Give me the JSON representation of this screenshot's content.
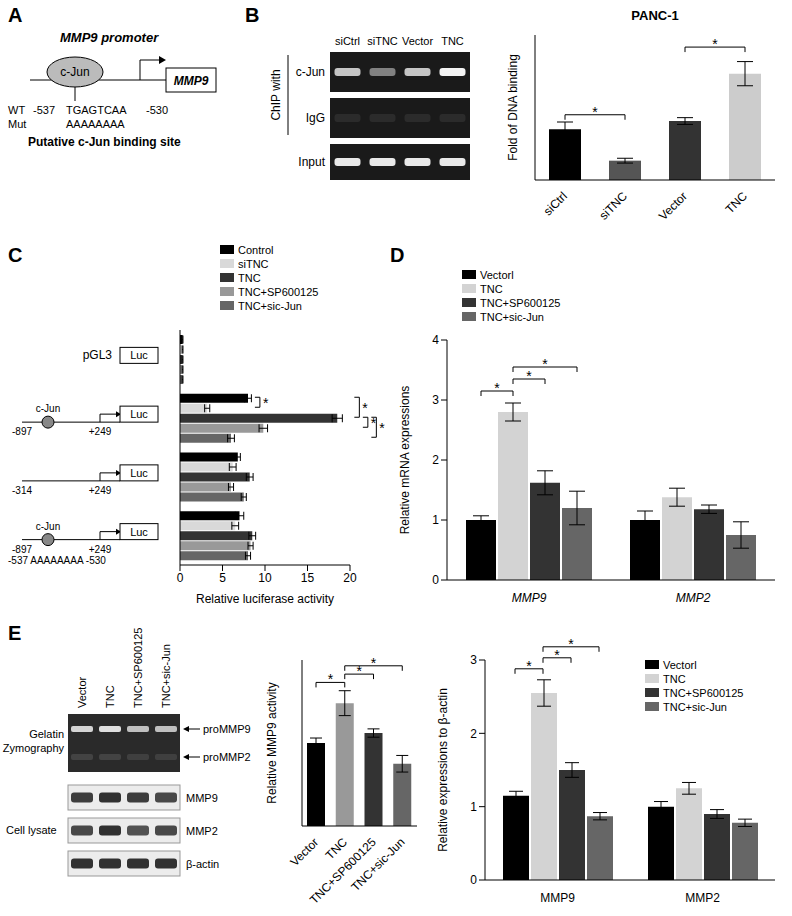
{
  "panels": {
    "letters": [
      "A",
      "B",
      "C",
      "D",
      "E"
    ],
    "A": {
      "title": "MMP9 promoter",
      "factor": "c-Jun",
      "gene": "MMP9",
      "wt_label": "WT",
      "mut_label": "Mut",
      "site_start": "-537",
      "site_end": "-530",
      "wt_sequence": "TGAGTCAA",
      "mut_sequence": "AAAAAAAA",
      "caption": "Putative c-Jun binding site"
    },
    "B_gel": {
      "group_label": "ChIP with",
      "lanes": [
        "siCtrl",
        "siTNC",
        "Vector",
        "TNC"
      ],
      "rows": [
        {
          "label": "c-Jun",
          "band_intensity": [
            0.75,
            0.45,
            0.75,
            0.95
          ]
        },
        {
          "label": "IgG",
          "band_intensity": [
            0.08,
            0.08,
            0.08,
            0.08
          ]
        },
        {
          "label": "Input",
          "band_intensity": [
            0.9,
            0.9,
            0.9,
            0.9
          ]
        }
      ]
    },
    "E_gel": {
      "lanes": [
        "Vector",
        "TNC",
        "TNC+SP600125",
        "TNC+sic-Jun"
      ],
      "zymography": {
        "label": "Gelatin Zymography",
        "bands": [
          {
            "label": "proMMP9",
            "band_intensity": [
              0.8,
              0.85,
              0.7,
              0.7
            ]
          },
          {
            "label": "proMMP2",
            "band_intensity": [
              0.12,
              0.12,
              0.1,
              0.1
            ]
          }
        ]
      },
      "lysate": {
        "label": "Cell lysate",
        "rows": [
          {
            "label": "MMP9",
            "band_intensity": [
              0.8,
              0.85,
              0.8,
              0.75
            ]
          },
          {
            "label": "MMP2",
            "band_intensity": [
              0.75,
              0.85,
              0.7,
              0.75
            ]
          },
          {
            "label": "β-actin",
            "band_intensity": [
              0.85,
              0.85,
              0.85,
              0.85
            ]
          }
        ]
      }
    }
  },
  "chart_data": [
    {
      "type": "bar",
      "title": "PANC-1",
      "y_label": "Fold of DNA binding",
      "categories": [
        "siCtrl",
        "siTNC",
        "Vector",
        "TNC"
      ],
      "values": [
        1.05,
        0.4,
        1.22,
        2.2
      ],
      "errors": [
        0.15,
        0.05,
        0.07,
        0.25
      ],
      "colors": [
        "#000000",
        "#555555",
        "#333333",
        "#cccccc"
      ],
      "ylim": [
        0,
        3
      ],
      "tick_labels": "x",
      "significance": [
        {
          "from": "siCtrl",
          "to": "siTNC",
          "label": "*"
        },
        {
          "from": "Vector",
          "to": "TNC",
          "label": "*"
        }
      ]
    },
    {
      "type": "bar",
      "orientation": "horizontal",
      "x_label": "Relative luciferase activity",
      "categories": [
        null,
        null,
        null,
        null
      ],
      "reporter": "Luc",
      "constructs": [
        {
          "label": "pGL3"
        },
        {
          "site": "c-Jun",
          "start": "-897",
          "end": "+249"
        },
        {
          "start": "-314",
          "end": "+249"
        },
        {
          "site": "c-Jun",
          "start": "-897",
          "end": "+249",
          "mutation": "-537 AAAAAAAA -530"
        }
      ],
      "series": [
        {
          "name": "Control",
          "color": "#000000",
          "values": [
            0.3,
            8.0,
            6.8,
            7.0
          ],
          "errors": [
            0.05,
            0.4,
            0.3,
            0.5
          ]
        },
        {
          "name": "siTNC",
          "color": "#d9d9d9",
          "values": [
            0.3,
            3.2,
            6.2,
            6.5
          ],
          "errors": [
            0.05,
            0.3,
            0.4,
            0.4
          ]
        },
        {
          "name": "TNC",
          "color": "#333333",
          "values": [
            0.3,
            18.5,
            8.2,
            8.5
          ],
          "errors": [
            0.05,
            0.6,
            0.4,
            0.4
          ]
        },
        {
          "name": "TNC+SP600125",
          "color": "#999999",
          "values": [
            0.3,
            9.8,
            6.0,
            8.3
          ],
          "errors": [
            0.05,
            0.5,
            0.3,
            0.3
          ]
        },
        {
          "name": "TNC+sic-Jun",
          "color": "#666666",
          "values": [
            0.3,
            6.0,
            7.5,
            8.0
          ],
          "errors": [
            0.05,
            0.4,
            0.3,
            0.3
          ]
        }
      ],
      "xlim": [
        0,
        20
      ],
      "xticks": [
        0,
        5,
        10,
        15,
        20
      ],
      "legend": "upper right",
      "significance": [
        {
          "category": 1,
          "from": "Control",
          "to": "siTNC",
          "label": "*"
        },
        {
          "category": 1,
          "from": "Control",
          "to": "TNC",
          "label": "*"
        },
        {
          "category": 1,
          "from": "TNC",
          "to": "TNC+SP600125",
          "label": "*"
        },
        {
          "category": 1,
          "from": "TNC",
          "to": "TNC+sic-Jun",
          "label": "*"
        }
      ]
    },
    {
      "type": "bar",
      "y_label": "Relative mRNA expressions",
      "categories": [
        "MMP9",
        "MMP2"
      ],
      "series": [
        {
          "name": "Vectorl",
          "color": "#000000",
          "values": [
            1.0,
            1.0
          ],
          "errors": [
            0.07,
            0.15
          ]
        },
        {
          "name": "TNC",
          "color": "#d3d3d3",
          "values": [
            2.8,
            1.38
          ],
          "errors": [
            0.15,
            0.15
          ]
        },
        {
          "name": "TNC+SP600125",
          "color": "#333333",
          "values": [
            1.62,
            1.18
          ],
          "errors": [
            0.2,
            0.07
          ]
        },
        {
          "name": "TNC+sic-Jun",
          "color": "#666666",
          "values": [
            1.2,
            0.75
          ],
          "errors": [
            0.28,
            0.22
          ]
        }
      ],
      "ylim": [
        0,
        4
      ],
      "yticks": [
        0,
        1,
        2,
        3,
        4
      ],
      "legend": "upper left",
      "significance": [
        {
          "category": "MMP9",
          "from": "Vectorl",
          "to": "TNC",
          "label": "*"
        },
        {
          "category": "MMP9",
          "from": "TNC",
          "to": "TNC+SP600125",
          "label": "*"
        },
        {
          "category": "MMP9",
          "from": "TNC",
          "to": "TNC+sic-Jun",
          "label": "*"
        }
      ]
    },
    {
      "type": "bar",
      "y_label": "Relative MMP9 activity",
      "categories": [
        "Vector",
        "TNC",
        "TNC+SP600125",
        "TNC+sic-Jun"
      ],
      "values": [
        1.0,
        1.48,
        1.12,
        0.75
      ],
      "errors": [
        0.06,
        0.15,
        0.05,
        0.1
      ],
      "colors": [
        "#000000",
        "#999999",
        "#333333",
        "#666666"
      ],
      "ylim": [
        0,
        2
      ],
      "tick_labels": "x",
      "significance": [
        {
          "from": "Vector",
          "to": "TNC",
          "label": "*"
        },
        {
          "from": "TNC",
          "to": "TNC+SP600125",
          "label": "*"
        },
        {
          "from": "TNC",
          "to": "TNC+sic-Jun",
          "label": "*"
        }
      ]
    },
    {
      "type": "bar",
      "y_label": "Relative expressions to β-actin",
      "categories": [
        "MMP9",
        "MMP2"
      ],
      "series": [
        {
          "name": "Vectorl",
          "color": "#000000",
          "values": [
            1.15,
            1.0
          ],
          "errors": [
            0.06,
            0.07
          ]
        },
        {
          "name": "TNC",
          "color": "#d3d3d3",
          "values": [
            2.55,
            1.25
          ],
          "errors": [
            0.18,
            0.08
          ]
        },
        {
          "name": "TNC+SP600125",
          "color": "#333333",
          "values": [
            1.5,
            0.9
          ],
          "errors": [
            0.1,
            0.06
          ]
        },
        {
          "name": "TNC+sic-Jun",
          "color": "#666666",
          "values": [
            0.87,
            0.78
          ],
          "errors": [
            0.05,
            0.05
          ]
        }
      ],
      "ylim": [
        0,
        3
      ],
      "yticks": [
        0,
        1,
        2,
        3
      ],
      "legend": "upper right",
      "significance": [
        {
          "category": "MMP9",
          "from": "Vectorl",
          "to": "TNC",
          "label": "*"
        },
        {
          "category": "MMP9",
          "from": "TNC",
          "to": "TNC+SP600125",
          "label": "*"
        },
        {
          "category": "MMP9",
          "from": "TNC",
          "to": "TNC+sic-Jun",
          "label": "*"
        }
      ]
    }
  ]
}
